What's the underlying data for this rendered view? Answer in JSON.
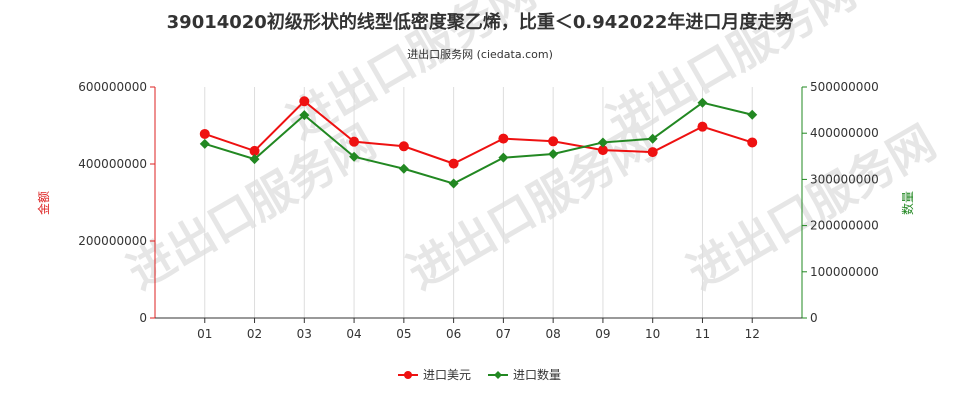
{
  "chart_data": {
    "type": "line",
    "title": "39014020初级形状的线型低密度聚乙烯，比重＜0.942022年进口月度走势",
    "subtitle": "进出口服务网 (ciedata.com)",
    "categories": [
      "01",
      "02",
      "03",
      "04",
      "05",
      "06",
      "07",
      "08",
      "09",
      "10",
      "11",
      "12"
    ],
    "y_left": {
      "label": "金额",
      "range": [
        0,
        600000000
      ],
      "ticks": [
        0,
        200000000,
        400000000,
        600000000
      ],
      "tick_labels": [
        "0",
        "200000000",
        "400000000",
        "600000000"
      ],
      "color": "#dd2222"
    },
    "y_right": {
      "label": "数量",
      "range": [
        0,
        500000000
      ],
      "ticks": [
        0,
        100000000,
        200000000,
        300000000,
        400000000,
        500000000
      ],
      "tick_labels": [
        "0",
        "100000000",
        "200000000",
        "300000000",
        "400000000",
        "500000000"
      ],
      "color": "#228822"
    },
    "series": [
      {
        "name": "进口美元",
        "axis": "left",
        "color": "#ee1111",
        "marker": "circle",
        "values": [
          478000000,
          434000000,
          563000000,
          458000000,
          446000000,
          401000000,
          466000000,
          459000000,
          436000000,
          431000000,
          497000000,
          456000000
        ]
      },
      {
        "name": "进口数量",
        "axis": "right",
        "color": "#228822",
        "marker": "diamond",
        "values": [
          377000000,
          344000000,
          439000000,
          349000000,
          323000000,
          291000000,
          347000000,
          355000000,
          380000000,
          388000000,
          466000000,
          440000000
        ]
      }
    ],
    "legend_position": "bottom-center",
    "grid": {
      "x": true,
      "y": false
    }
  },
  "watermark": "进出口服务网"
}
